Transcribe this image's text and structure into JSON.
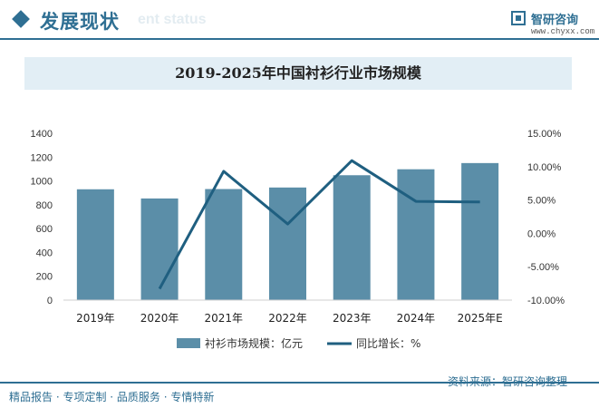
{
  "header": {
    "section_title": "发展现状",
    "section_subtitle": "ent status",
    "brand_name": "智研咨询",
    "brand_url": "www.chyxx.com"
  },
  "chart_data": {
    "type": "bar",
    "title": "2019-2025年中国衬衫行业市场规模",
    "categories": [
      "2019年",
      "2020年",
      "2021年",
      "2022年",
      "2023年",
      "2024年",
      "2025年E"
    ],
    "series": [
      {
        "name": "衬衫市场规模：亿元",
        "type": "bar",
        "axis": "left",
        "color": "#5b8ea8",
        "values": [
          930,
          853,
          932,
          945,
          1048,
          1098,
          1150
        ]
      },
      {
        "name": "同比增长：%",
        "type": "line",
        "axis": "right",
        "color": "#1f5f80",
        "values": [
          null,
          -8.3,
          9.3,
          1.4,
          10.9,
          4.8,
          4.7
        ]
      }
    ],
    "y_left": {
      "min": 0,
      "max": 1400,
      "ticks": [
        "0",
        "200",
        "400",
        "600",
        "800",
        "1000",
        "1200",
        "1400"
      ]
    },
    "y_right": {
      "min": -10,
      "max": 15,
      "ticks": [
        "-10.00%",
        "-5.00%",
        "0.00%",
        "5.00%",
        "10.00%",
        "15.00%"
      ]
    },
    "grid": false,
    "legend_position": "bottom"
  },
  "footer": {
    "tagline": "精品报告 · 专项定制 · 品质服务 · 专情特新",
    "source": "资料来源：智研咨询整理"
  }
}
